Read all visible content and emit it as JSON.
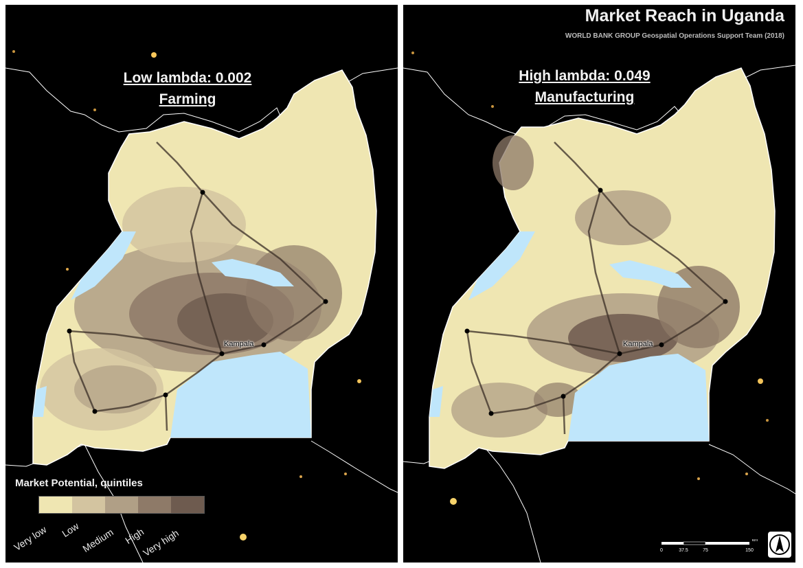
{
  "left_panel": {
    "lambda_line": "Low lambda: 0.002",
    "sector": "Farming",
    "city_label": "Kampala"
  },
  "right_panel": {
    "title": "Market Reach in Uganda",
    "subtitle": "WORLD BANK GROUP Geospatial Operations Support Team (2018)",
    "lambda_line": "High lambda: 0.049",
    "sector": "Manufacturing",
    "city_label": "Kampala"
  },
  "legend": {
    "title": "Market Potential, quintiles",
    "classes": [
      {
        "label": "Very low",
        "color": "#efe6b2"
      },
      {
        "label": "Low",
        "color": "#d3c4a0"
      },
      {
        "label": "Medium",
        "color": "#b09f86"
      },
      {
        "label": "High",
        "color": "#8e7a68"
      },
      {
        "label": "Very high",
        "color": "#6e5b4f"
      }
    ]
  },
  "scale_bar": {
    "unit": "km",
    "ticks": [
      "0",
      "37.5",
      "75",
      "150"
    ]
  },
  "north_arrow": {
    "icon": "north-arrow-icon"
  },
  "colors": {
    "background": "#000000",
    "water": "#bfe6fb",
    "land_low": "#efe6b2",
    "boundary": "#ffffff",
    "roads": "#3a2e26"
  }
}
